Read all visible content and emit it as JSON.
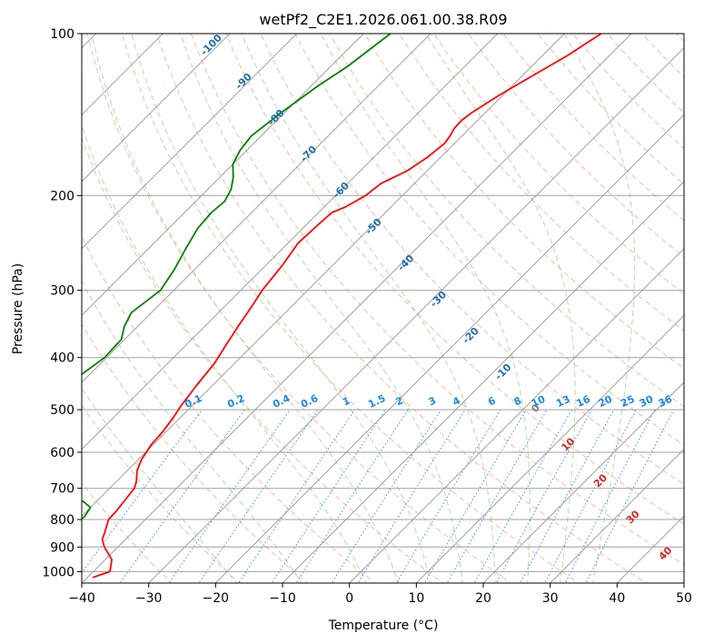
{
  "chart_data": {
    "type": "line",
    "title": "wetPf2_C2E1.2026.061.00.38.R09",
    "xlabel": "Temperature (°C)",
    "ylabel": "Pressure (hPa)",
    "xlim": [
      -40,
      50
    ],
    "ylim": [
      1050,
      100
    ],
    "y_scale": "log",
    "grid": true,
    "x_ticks": [
      "−40",
      "−30",
      "−20",
      "−10",
      "0",
      "10",
      "20",
      "30",
      "40",
      "50"
    ],
    "y_ticks": [
      {
        "p": 100,
        "label": "100"
      },
      {
        "p": 200,
        "label": "200"
      },
      {
        "p": 300,
        "label": "300"
      },
      {
        "p": 400,
        "label": "400"
      },
      {
        "p": 500,
        "label": "500"
      },
      {
        "p": 600,
        "label": "600"
      },
      {
        "p": 700,
        "label": "700"
      },
      {
        "p": 800,
        "label": "800"
      },
      {
        "p": 900,
        "label": "900"
      },
      {
        "p": 1000,
        "label": "1000"
      }
    ],
    "series": [
      {
        "color": "#ff0000",
        "p": [
          1025,
          1000,
          950,
          900,
          870,
          850,
          800,
          770,
          730,
          700,
          680,
          650,
          620,
          580,
          550,
          520,
          490,
          450,
          410,
          380,
          350,
          320,
          300,
          270,
          245,
          225,
          215,
          210,
          200,
          190,
          180,
          170,
          160,
          155,
          150,
          145,
          140,
          130,
          120,
          110,
          100
        ],
        "t": [
          -39.2,
          -37.5,
          -39.0,
          -42.0,
          -43.5,
          -44.0,
          -45.5,
          -45.6,
          -46.0,
          -46.3,
          -47.0,
          -48.5,
          -49.5,
          -50.3,
          -50.5,
          -51.0,
          -51.7,
          -52.4,
          -53.0,
          -54.0,
          -55.0,
          -56.0,
          -56.8,
          -57.5,
          -58.5,
          -58.2,
          -58.0,
          -56.8,
          -55.5,
          -55.0,
          -53.0,
          -52.0,
          -51.5,
          -51.8,
          -52.3,
          -52.4,
          -52.0,
          -50.5,
          -48.5,
          -46.3,
          -44.5
        ]
      },
      {
        "color": "#008000",
        "p": [
          1015,
          990,
          960,
          930,
          900,
          870,
          850,
          820,
          790,
          760,
          740,
          720,
          700,
          690,
          680,
          670,
          650,
          620,
          590,
          560,
          530,
          500,
          470,
          440,
          400,
          370,
          350,
          330,
          300,
          275,
          250,
          230,
          215,
          205,
          195,
          185,
          175,
          165,
          155,
          140,
          125,
          115,
          100
        ],
        "t": [
          -47.0,
          -49.5,
          -49.0,
          -50.5,
          -52.7,
          -52.5,
          -51.0,
          -50.0,
          -49.5,
          -50.0,
          -52.0,
          -58.0,
          -70.0,
          -73.0,
          -73.5,
          -72.5,
          -71.5,
          -72.0,
          -72.2,
          -72.5,
          -73.0,
          -73.8,
          -72.5,
          -71.5,
          -70.3,
          -70.5,
          -72.0,
          -73.0,
          -72.0,
          -73.0,
          -74.5,
          -75.7,
          -76.0,
          -75.7,
          -76.5,
          -78.0,
          -80.0,
          -81.0,
          -81.5,
          -80.5,
          -79.0,
          -77.5,
          -76.0
        ]
      }
    ],
    "annotations": {
      "dry_adiabats": [
        "-100",
        "-90",
        "-80",
        "-70",
        "-60",
        "-50",
        "-40",
        "-30",
        "-20",
        "-10",
        "0",
        "10",
        "20",
        "30",
        "40"
      ],
      "mixing_ratios": [
        "0.1",
        "0.2",
        "0.4",
        "0.6",
        "1",
        "1.5",
        "2",
        "3",
        "4",
        "6",
        "8",
        "10",
        "13",
        "16",
        "20",
        "25",
        "30",
        "36"
      ],
      "moist_adiabats": [
        "0",
        "10",
        "20",
        "30",
        "40"
      ]
    },
    "colors": {
      "dry_adiabat": "#f4a582",
      "moist_adiabat": "#a6d9a0",
      "mixing_ratio": "#1e88e5",
      "isotherm": "#a0a0a0",
      "dry_label": "#1f6fa8",
      "mr_label": "#1e88e5",
      "moist_red_label": "#d62728",
      "moist_zero_label": "#808080",
      "curve_shade": "#d2b48c"
    }
  }
}
